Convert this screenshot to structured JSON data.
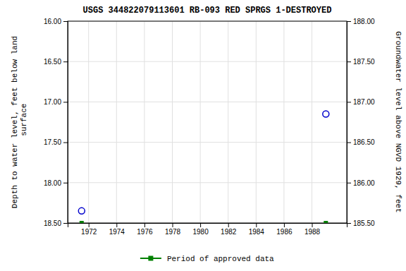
{
  "chart_data": {
    "type": "scatter",
    "title": "USGS 344822079113601 RB-093 RED SPRGS 1-DESTROYED",
    "y_label": "Depth to water level, feet below land\n surface",
    "y2_label": "Groundwater level above NGVD 1929, feet",
    "xlim": [
      1970.5,
      1990.5
    ],
    "xticks": [
      1972,
      1974,
      1976,
      1978,
      1980,
      1982,
      1984,
      1986,
      1988
    ],
    "ylim": [
      18.5,
      16.0
    ],
    "yticks": [
      {
        "value": 16.0,
        "label": "16.00"
      },
      {
        "value": 16.5,
        "label": "16.50"
      },
      {
        "value": 17.0,
        "label": "17.00"
      },
      {
        "value": 17.5,
        "label": "17.50"
      },
      {
        "value": 18.0,
        "label": "18.00"
      },
      {
        "value": 18.5,
        "label": "18.50"
      }
    ],
    "y2lim": [
      185.5,
      188.0
    ],
    "y2ticks": [
      {
        "value": 185.5,
        "label": "185.50"
      },
      {
        "value": 186.0,
        "label": "186.00"
      },
      {
        "value": 186.5,
        "label": "186.50"
      },
      {
        "value": 187.0,
        "label": "187.00"
      },
      {
        "value": 187.5,
        "label": "187.50"
      },
      {
        "value": 188.0,
        "label": "188.00"
      }
    ],
    "grid": true,
    "legend": "bottom",
    "series": [
      {
        "color": "#0000cc",
        "marker": "open-circle",
        "x": [
          1971.5,
          1989.0
        ],
        "values": [
          18.35,
          17.15
        ]
      },
      {
        "name": "Period of approved data",
        "color": "#008000",
        "marker": "square",
        "x": [
          1971.5,
          1989.0
        ],
        "values": [
          18.5,
          18.5
        ]
      }
    ]
  }
}
